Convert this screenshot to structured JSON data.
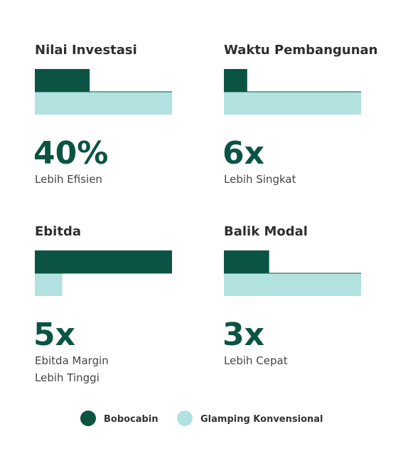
{
  "chart_data": [
    {
      "type": "bar",
      "title": "Nilai Investasi",
      "values": [
        40,
        100
      ],
      "xlim": [
        0,
        100
      ],
      "headline": "40%",
      "caption": [
        "Lebih Efisien"
      ]
    },
    {
      "type": "bar",
      "title": "Waktu Pembangunan",
      "values": [
        17,
        100
      ],
      "xlim": [
        0,
        100
      ],
      "headline": "6x",
      "caption": [
        "Lebih Singkat"
      ]
    },
    {
      "type": "bar",
      "title": "Ebitda",
      "values": [
        100,
        20
      ],
      "xlim": [
        0,
        100
      ],
      "headline": "5x",
      "caption": [
        "Ebitda Margin",
        "Lebih Tinggi"
      ]
    },
    {
      "type": "bar",
      "title": "Balik Modal",
      "values": [
        33,
        100
      ],
      "xlim": [
        0,
        100
      ],
      "headline": "3x",
      "caption": [
        "Lebih Cepat"
      ]
    }
  ],
  "legend": [
    {
      "name": "Bobocabin",
      "color": "#0b5444"
    },
    {
      "name": "Glamping Konvensional",
      "color": "#b2e2df"
    }
  ]
}
